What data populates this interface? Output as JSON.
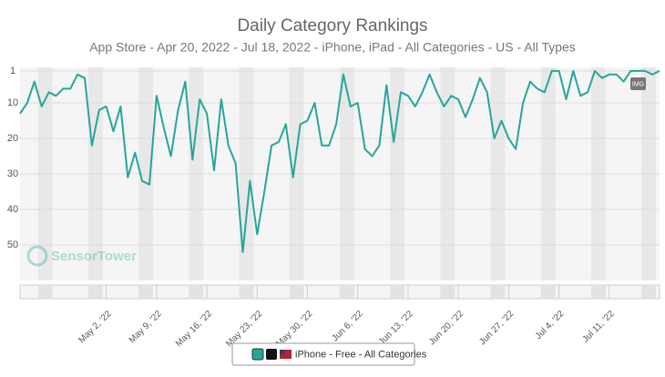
{
  "chart_data": {
    "type": "line",
    "title": "Daily Category Rankings",
    "subtitle": "App Store - Apr 20, 2022 - Jul 18, 2022 - iPhone, iPad - All Categories - US - All Types",
    "watermark": "SensorTower",
    "badge": "IMG",
    "x": [
      "2022-04-20",
      "2022-04-21",
      "2022-04-22",
      "2022-04-23",
      "2022-04-24",
      "2022-04-25",
      "2022-04-26",
      "2022-04-27",
      "2022-04-28",
      "2022-04-29",
      "2022-04-30",
      "2022-05-01",
      "2022-05-02",
      "2022-05-03",
      "2022-05-04",
      "2022-05-05",
      "2022-05-06",
      "2022-05-07",
      "2022-05-08",
      "2022-05-09",
      "2022-05-10",
      "2022-05-11",
      "2022-05-12",
      "2022-05-13",
      "2022-05-14",
      "2022-05-15",
      "2022-05-16",
      "2022-05-17",
      "2022-05-18",
      "2022-05-19",
      "2022-05-20",
      "2022-05-21",
      "2022-05-22",
      "2022-05-23",
      "2022-05-24",
      "2022-05-25",
      "2022-05-26",
      "2022-05-27",
      "2022-05-28",
      "2022-05-29",
      "2022-05-30",
      "2022-05-31",
      "2022-06-01",
      "2022-06-02",
      "2022-06-03",
      "2022-06-04",
      "2022-06-05",
      "2022-06-06",
      "2022-06-07",
      "2022-06-08",
      "2022-06-09",
      "2022-06-10",
      "2022-06-11",
      "2022-06-12",
      "2022-06-13",
      "2022-06-14",
      "2022-06-15",
      "2022-06-16",
      "2022-06-17",
      "2022-06-18",
      "2022-06-19",
      "2022-06-20",
      "2022-06-21",
      "2022-06-22",
      "2022-06-23",
      "2022-06-24",
      "2022-06-25",
      "2022-06-26",
      "2022-06-27",
      "2022-06-28",
      "2022-06-29",
      "2022-06-30",
      "2022-07-01",
      "2022-07-02",
      "2022-07-03",
      "2022-07-04",
      "2022-07-05",
      "2022-07-06",
      "2022-07-07",
      "2022-07-08",
      "2022-07-09",
      "2022-07-10",
      "2022-07-11",
      "2022-07-12",
      "2022-07-13",
      "2022-07-14",
      "2022-07-15",
      "2022-07-16",
      "2022-07-17",
      "2022-07-18"
    ],
    "series": [
      {
        "name": "iPhone - Free - All Categories",
        "color": "#26a69a",
        "values": [
          13,
          10,
          4,
          11,
          7,
          8,
          6,
          6,
          2,
          3,
          22,
          12,
          11,
          18,
          11,
          31,
          24,
          32,
          33,
          8,
          17,
          25,
          12,
          4,
          26,
          9,
          13,
          29,
          9,
          22,
          27,
          52,
          32,
          47,
          35,
          22,
          21,
          16,
          31,
          16,
          15,
          10,
          22,
          22,
          16,
          2,
          11,
          10,
          23,
          25,
          22,
          5,
          21,
          7,
          8,
          11,
          7,
          2,
          7,
          11,
          8,
          9,
          14,
          9,
          3,
          7,
          20,
          15,
          20,
          23,
          10,
          4,
          6,
          7,
          1,
          1,
          9,
          1,
          8,
          7,
          1,
          3,
          2,
          2,
          4,
          1,
          1,
          1,
          2,
          1
        ]
      }
    ],
    "xlim": [
      "2022-04-20",
      "2022-07-18"
    ],
    "xticks": [
      {
        "value": "2022-05-02",
        "label": "May 2, '22"
      },
      {
        "value": "2022-05-09",
        "label": "May 9, '22"
      },
      {
        "value": "2022-05-16",
        "label": "May 16, '22"
      },
      {
        "value": "2022-05-23",
        "label": "May 23, '22"
      },
      {
        "value": "2022-05-30",
        "label": "May 30, '22"
      },
      {
        "value": "2022-06-06",
        "label": "Jun 6, '22"
      },
      {
        "value": "2022-06-13",
        "label": "Jun 13, '22"
      },
      {
        "value": "2022-06-20",
        "label": "Jun 20, '22"
      },
      {
        "value": "2022-06-27",
        "label": "Jun 27, '22"
      },
      {
        "value": "2022-07-04",
        "label": "Jul 4, '22"
      },
      {
        "value": "2022-07-11",
        "label": "Jul 11, '22"
      }
    ],
    "ylim": [
      0,
      60
    ],
    "yticks": [
      1,
      10,
      20,
      30,
      40,
      50
    ],
    "y_inverted": true,
    "grid": true
  }
}
